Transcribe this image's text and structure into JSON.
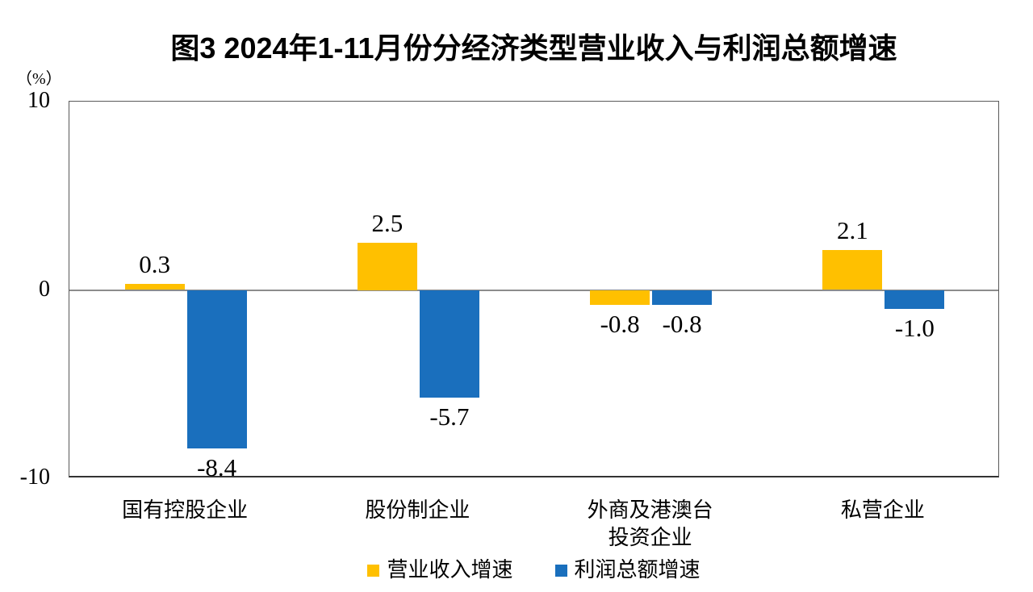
{
  "page": {
    "background": "#ffffff"
  },
  "chart_data": {
    "type": "bar",
    "title": "图3  2024年1-11月份分经济类型营业收入与利润总额增速",
    "unit_label": "（%）",
    "categories": [
      "国有控股企业",
      "股份制企业",
      "外商及港澳台\n投资企业",
      "私营企业"
    ],
    "series": [
      {
        "name": "营业收入增速",
        "color": "#FFC000",
        "values": [
          0.3,
          2.5,
          -0.8,
          2.1
        ]
      },
      {
        "name": "利润总额增速",
        "color": "#1A6FBD",
        "values": [
          -8.4,
          -5.7,
          -0.8,
          -1.0
        ]
      }
    ],
    "ylim": [
      -10,
      10
    ],
    "yticks": [
      10,
      0,
      -10
    ],
    "grid": false,
    "legend_position": "bottom",
    "colors": {
      "zero_line": "#8c8c8c",
      "plot_border": "#595959",
      "text": "#000000"
    }
  }
}
